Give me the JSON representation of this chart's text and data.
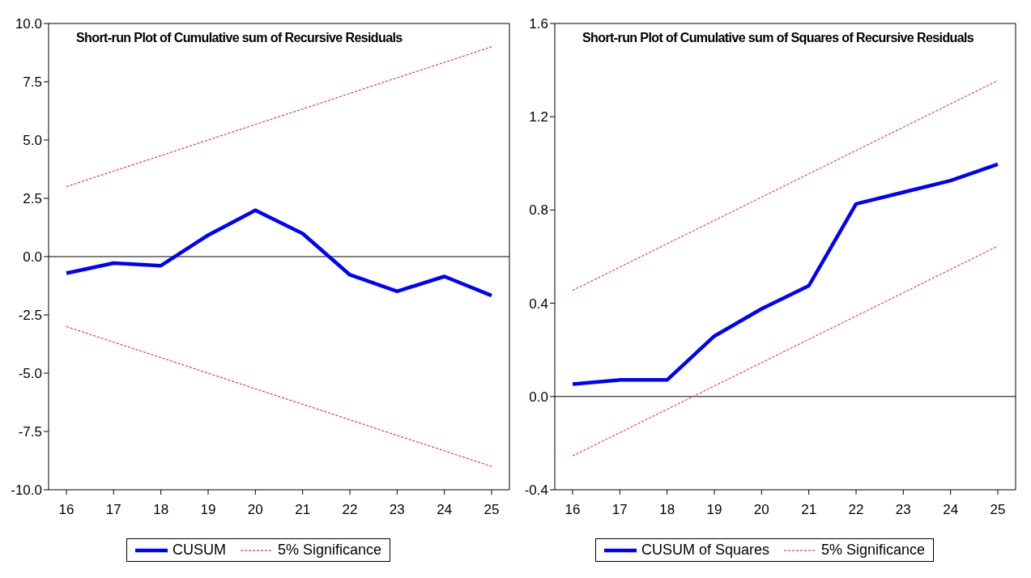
{
  "chart_data": [
    {
      "type": "line",
      "title": "Short-run Plot of Cumulative sum of Recursive Residuals",
      "categories": [
        "16",
        "17",
        "18",
        "19",
        "20",
        "21",
        "22",
        "23",
        "24",
        "25"
      ],
      "series": [
        {
          "name": "CUSUM",
          "color": "#0000ff",
          "line_style": "solid",
          "values": [
            -0.71,
            -0.28,
            -0.39,
            0.92,
            1.99,
            0.99,
            -0.78,
            -1.49,
            -0.85,
            -1.67
          ]
        },
        {
          "name": "5% Significance",
          "color": "#ff0000",
          "line_style": "dashed",
          "values": [
            3.0,
            3.67,
            4.33,
            5.0,
            5.67,
            6.33,
            7.0,
            7.67,
            8.33,
            9.0
          ]
        },
        {
          "color": "#ff0000",
          "line_style": "dashed",
          "values": [
            -3.0,
            -3.67,
            -4.33,
            -5.0,
            -5.67,
            -6.33,
            -7.0,
            -7.67,
            -8.33,
            -9.0
          ]
        }
      ],
      "ylim": [
        -10,
        10
      ],
      "yticks": [
        {
          "value": -10,
          "label": "-10.0"
        },
        {
          "value": -7.5,
          "label": "-7.5"
        },
        {
          "value": -5,
          "label": "-5.0"
        },
        {
          "value": -2.5,
          "label": "-2.5"
        },
        {
          "value": 0,
          "label": "0.0"
        },
        {
          "value": 2.5,
          "label": "2.5"
        },
        {
          "value": 5,
          "label": "5.0"
        },
        {
          "value": 7.5,
          "label": "7.5"
        },
        {
          "value": 10,
          "label": "10.0"
        }
      ],
      "ref_lines": [
        {
          "axis": "y",
          "value": 0,
          "color": "#000000"
        }
      ],
      "grid": false,
      "legend": "bottom",
      "marker": "none"
    },
    {
      "type": "line",
      "title": "Short-run Plot of Cumulative sum of Squares of Recursive Residuals",
      "categories": [
        "16",
        "17",
        "18",
        "19",
        "20",
        "21",
        "22",
        "23",
        "24",
        "25"
      ],
      "series": [
        {
          "name": "CUSUM of Squares",
          "color": "#0000ff",
          "line_style": "solid",
          "values": [
            0.053,
            0.071,
            0.071,
            0.259,
            0.376,
            0.475,
            0.826,
            0.876,
            0.926,
            0.996
          ]
        },
        {
          "name": "5% Significance",
          "color": "#ff0000",
          "line_style": "dashed",
          "values": [
            0.455,
            0.555,
            0.655,
            0.755,
            0.855,
            0.955,
            1.055,
            1.155,
            1.255,
            1.355
          ]
        },
        {
          "color": "#ff0000",
          "line_style": "dashed",
          "values": [
            -0.255,
            -0.155,
            -0.055,
            0.045,
            0.145,
            0.245,
            0.345,
            0.445,
            0.545,
            0.645
          ]
        }
      ],
      "ylim": [
        -0.4,
        1.6
      ],
      "yticks": [
        {
          "value": -0.4,
          "label": "-0.4"
        },
        {
          "value": 0,
          "label": "0.0"
        },
        {
          "value": 0.4,
          "label": "0.4"
        },
        {
          "value": 0.8,
          "label": "0.8"
        },
        {
          "value": 1.2,
          "label": "1.2"
        },
        {
          "value": 1.6,
          "label": "1.6"
        }
      ],
      "ref_lines": [
        {
          "axis": "y",
          "value": 0,
          "color": "#000000"
        }
      ],
      "grid": false,
      "legend": "bottom",
      "marker": "none"
    }
  ]
}
